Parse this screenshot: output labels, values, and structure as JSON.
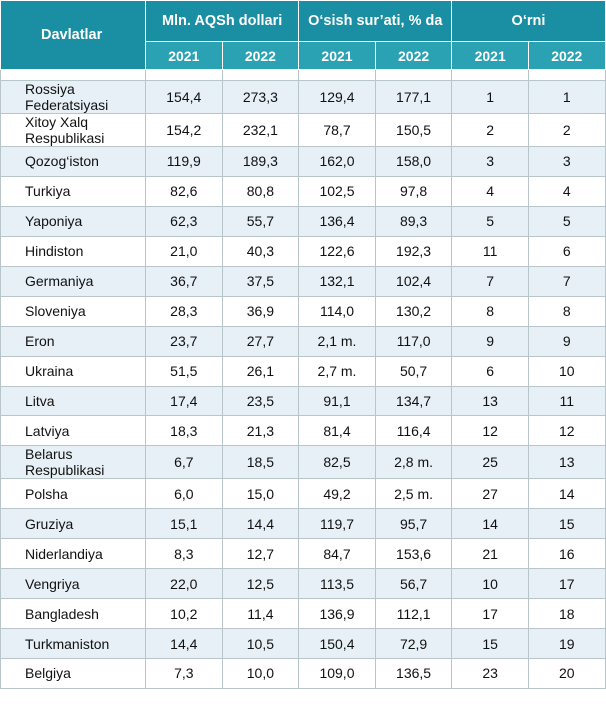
{
  "headers": {
    "country": "Davlatlar",
    "group1": "Mln. AQSh dollari",
    "group2": "O‘sish sur’ati, % da",
    "group3": "O‘rni",
    "years": [
      "2021",
      "2022",
      "2021",
      "2022",
      "2021",
      "2022"
    ]
  },
  "rows": [
    {
      "name": "Rossiya Federatsiyasi",
      "v1": "154,4",
      "v2": "273,3",
      "g1": "129,4",
      "g2": "177,1",
      "r1": "1",
      "r2": "1"
    },
    {
      "name": "Xitoy Xalq Respublikasi",
      "v1": "154,2",
      "v2": "232,1",
      "g1": "78,7",
      "g2": "150,5",
      "r1": "2",
      "r2": "2"
    },
    {
      "name": "Qozog‘iston",
      "v1": "119,9",
      "v2": "189,3",
      "g1": "162,0",
      "g2": "158,0",
      "r1": "3",
      "r2": "3"
    },
    {
      "name": "Turkiya",
      "v1": "82,6",
      "v2": "80,8",
      "g1": "102,5",
      "g2": "97,8",
      "r1": "4",
      "r2": "4"
    },
    {
      "name": "Yaponiya",
      "v1": "62,3",
      "v2": "55,7",
      "g1": "136,4",
      "g2": "89,3",
      "r1": "5",
      "r2": "5"
    },
    {
      "name": "Hindiston",
      "v1": "21,0",
      "v2": "40,3",
      "g1": "122,6",
      "g2": "192,3",
      "r1": "11",
      "r2": "6"
    },
    {
      "name": "Germaniya",
      "v1": "36,7",
      "v2": "37,5",
      "g1": "132,1",
      "g2": "102,4",
      "r1": "7",
      "r2": "7"
    },
    {
      "name": "Sloveniya",
      "v1": "28,3",
      "v2": "36,9",
      "g1": "114,0",
      "g2": "130,2",
      "r1": "8",
      "r2": "8"
    },
    {
      "name": "Eron",
      "v1": "23,7",
      "v2": "27,7",
      "g1": "2,1 m.",
      "g2": "117,0",
      "r1": "9",
      "r2": "9"
    },
    {
      "name": "Ukraina",
      "v1": "51,5",
      "v2": "26,1",
      "g1": "2,7 m.",
      "g2": "50,7",
      "r1": "6",
      "r2": "10"
    },
    {
      "name": "Litva",
      "v1": "17,4",
      "v2": "23,5",
      "g1": "91,1",
      "g2": "134,7",
      "r1": "13",
      "r2": "11"
    },
    {
      "name": "Latviya",
      "v1": "18,3",
      "v2": "21,3",
      "g1": "81,4",
      "g2": "116,4",
      "r1": "12",
      "r2": "12"
    },
    {
      "name": "Belarus Respublikasi",
      "v1": "6,7",
      "v2": "18,5",
      "g1": "82,5",
      "g2": "2,8 m.",
      "r1": "25",
      "r2": "13"
    },
    {
      "name": "Polsha",
      "v1": "6,0",
      "v2": "15,0",
      "g1": "49,2",
      "g2": "2,5 m.",
      "r1": "27",
      "r2": "14"
    },
    {
      "name": "Gruziya",
      "v1": "15,1",
      "v2": "14,4",
      "g1": "119,7",
      "g2": "95,7",
      "r1": "14",
      "r2": "15"
    },
    {
      "name": "Niderlandiya",
      "v1": "8,3",
      "v2": "12,7",
      "g1": "84,7",
      "g2": "153,6",
      "r1": "21",
      "r2": "16"
    },
    {
      "name": "Vengriya",
      "v1": "22,0",
      "v2": "12,5",
      "g1": "113,5",
      "g2": "56,7",
      "r1": "10",
      "r2": "17"
    },
    {
      "name": "Bangladesh",
      "v1": "10,2",
      "v2": "11,4",
      "g1": "136,9",
      "g2": "112,1",
      "r1": "17",
      "r2": "18"
    },
    {
      "name": "Turkmaniston",
      "v1": "14,4",
      "v2": "10,5",
      "g1": "150,4",
      "g2": "72,9",
      "r1": "15",
      "r2": "19"
    },
    {
      "name": "Belgiya",
      "v1": "7,3",
      "v2": "10,0",
      "g1": "109,0",
      "g2": "136,5",
      "r1": "23",
      "r2": "20"
    }
  ],
  "colors": {
    "header_top": "#1a8fa3",
    "header_years": "#2aa2b4",
    "row_alt": "#e7f0f6",
    "border": "#b8c6c9"
  }
}
